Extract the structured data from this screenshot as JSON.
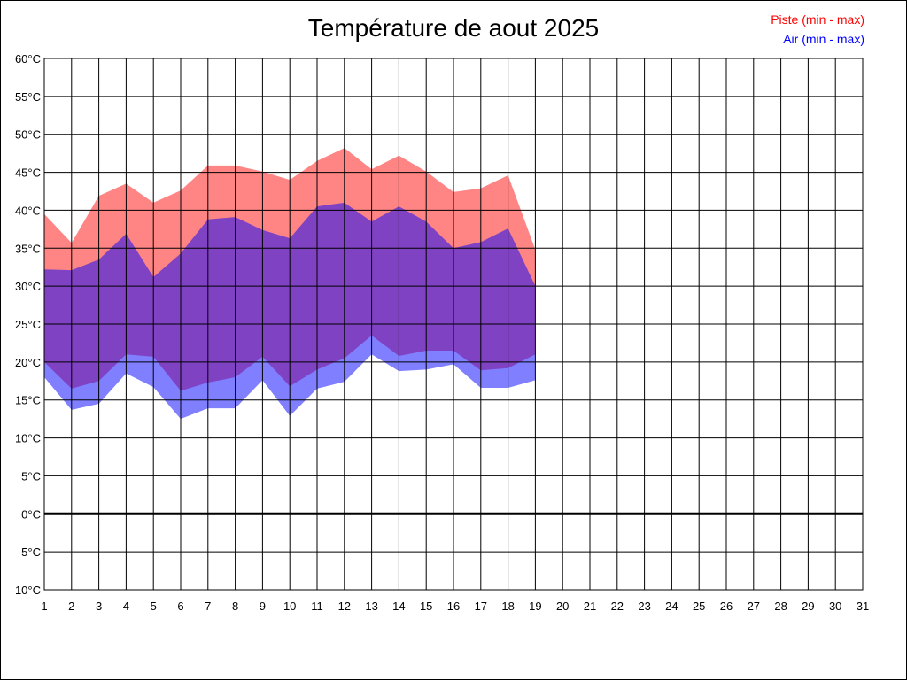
{
  "chart_data": {
    "type": "area",
    "title": "Température de aout 2025",
    "xlabel": "",
    "ylabel": "",
    "x": [
      1,
      2,
      3,
      4,
      5,
      6,
      7,
      8,
      9,
      10,
      11,
      12,
      13,
      14,
      15,
      16,
      17,
      18,
      19
    ],
    "xlim": [
      1,
      31
    ],
    "x_ticks": [
      "1",
      "2",
      "3",
      "4",
      "5",
      "6",
      "7",
      "8",
      "9",
      "10",
      "11",
      "12",
      "13",
      "14",
      "15",
      "16",
      "17",
      "18",
      "19",
      "20",
      "21",
      "22",
      "23",
      "24",
      "25",
      "26",
      "27",
      "28",
      "29",
      "30",
      "31"
    ],
    "ylim": [
      -10,
      60
    ],
    "y_ticks": [
      "-10°C",
      "-5°C",
      "0°C",
      "5°C",
      "10°C",
      "15°C",
      "20°C",
      "25°C",
      "30°C",
      "35°C",
      "40°C",
      "45°C",
      "50°C",
      "55°C",
      "60°C"
    ],
    "grid": true,
    "legend_position": "top-right",
    "series": [
      {
        "name": "Piste (min - max)",
        "color": "#ff0000",
        "fill": "#ff8080",
        "min": [
          20.0,
          16.5,
          17.5,
          21.0,
          20.7,
          16.2,
          17.3,
          18.0,
          20.7,
          16.8,
          19.0,
          20.5,
          23.5,
          20.8,
          21.5,
          21.5,
          18.9,
          19.2,
          21.0
        ],
        "max": [
          39.5,
          35.7,
          41.9,
          43.5,
          41.0,
          42.6,
          45.9,
          45.9,
          45.1,
          44.0,
          46.5,
          48.2,
          45.4,
          47.2,
          45.1,
          42.4,
          42.9,
          44.6,
          34.8
        ]
      },
      {
        "name": "Air (min - max)",
        "color": "#0000ff",
        "fill": "#8080ff",
        "min": [
          18.0,
          13.7,
          14.5,
          18.5,
          16.7,
          12.5,
          13.9,
          13.9,
          17.6,
          12.9,
          16.5,
          17.4,
          21.0,
          18.8,
          19.0,
          19.7,
          16.6,
          16.6,
          17.6
        ],
        "max": [
          32.2,
          32.1,
          33.5,
          36.9,
          31.2,
          34.3,
          38.8,
          39.1,
          37.4,
          36.3,
          40.5,
          41.0,
          38.5,
          40.5,
          38.5,
          35.0,
          35.8,
          37.6,
          30.0
        ]
      }
    ]
  }
}
